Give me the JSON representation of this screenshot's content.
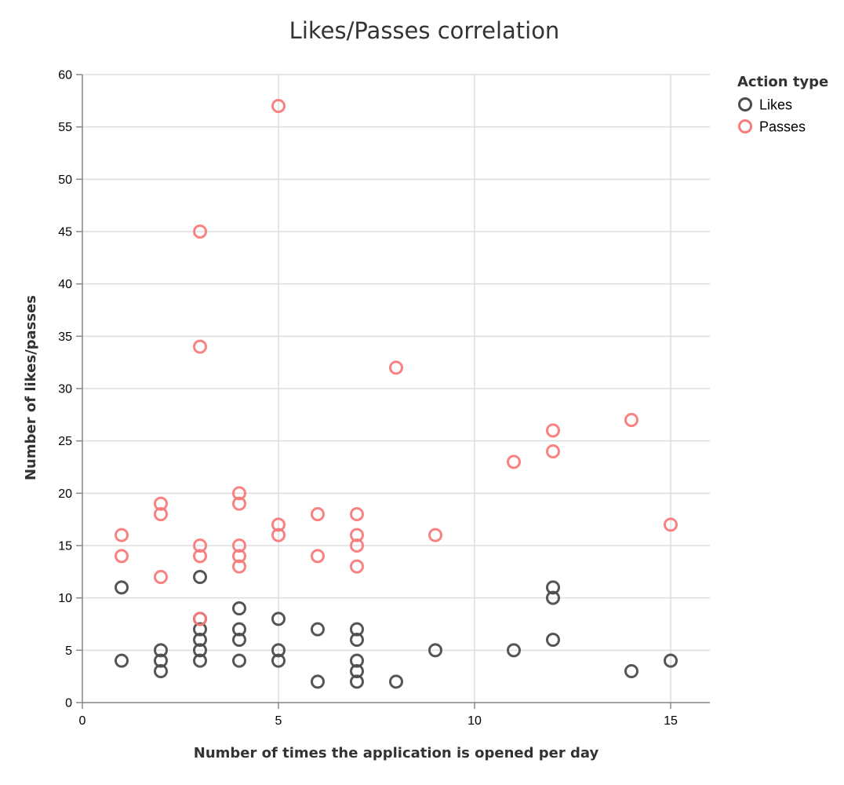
{
  "chart_data": {
    "type": "scatter",
    "title": "Likes/Passes correlation",
    "xlabel": "Number of times the application is opened per day",
    "ylabel": "Number of likes/passes",
    "xlim": [
      0,
      16
    ],
    "ylim": [
      0,
      60
    ],
    "x_ticks": [
      0,
      5,
      10,
      15
    ],
    "y_ticks": [
      0,
      5,
      10,
      15,
      20,
      25,
      30,
      35,
      40,
      45,
      50,
      55,
      60
    ],
    "grid": true,
    "legend": {
      "title": "Action type",
      "placement": "right"
    },
    "series": [
      {
        "name": "Likes",
        "color": "#4c4c4c",
        "points": [
          {
            "x": 1,
            "y": 11
          },
          {
            "x": 1,
            "y": 4
          },
          {
            "x": 2,
            "y": 5
          },
          {
            "x": 2,
            "y": 4
          },
          {
            "x": 2,
            "y": 3
          },
          {
            "x": 3,
            "y": 12
          },
          {
            "x": 3,
            "y": 8
          },
          {
            "x": 3,
            "y": 7
          },
          {
            "x": 3,
            "y": 6
          },
          {
            "x": 3,
            "y": 5
          },
          {
            "x": 3,
            "y": 4
          },
          {
            "x": 4,
            "y": 9
          },
          {
            "x": 4,
            "y": 7
          },
          {
            "x": 4,
            "y": 6
          },
          {
            "x": 4,
            "y": 4
          },
          {
            "x": 5,
            "y": 8
          },
          {
            "x": 5,
            "y": 5
          },
          {
            "x": 5,
            "y": 4
          },
          {
            "x": 6,
            "y": 7
          },
          {
            "x": 6,
            "y": 2
          },
          {
            "x": 7,
            "y": 7
          },
          {
            "x": 7,
            "y": 6
          },
          {
            "x": 7,
            "y": 4
          },
          {
            "x": 7,
            "y": 3
          },
          {
            "x": 7,
            "y": 2
          },
          {
            "x": 8,
            "y": 2
          },
          {
            "x": 9,
            "y": 5
          },
          {
            "x": 11,
            "y": 5
          },
          {
            "x": 12,
            "y": 11
          },
          {
            "x": 12,
            "y": 10
          },
          {
            "x": 12,
            "y": 6
          },
          {
            "x": 14,
            "y": 3
          },
          {
            "x": 15,
            "y": 4
          }
        ]
      },
      {
        "name": "Passes",
        "color": "#f87a7a",
        "points": [
          {
            "x": 1,
            "y": 16
          },
          {
            "x": 1,
            "y": 14
          },
          {
            "x": 2,
            "y": 19
          },
          {
            "x": 2,
            "y": 18
          },
          {
            "x": 2,
            "y": 12
          },
          {
            "x": 3,
            "y": 45
          },
          {
            "x": 3,
            "y": 34
          },
          {
            "x": 3,
            "y": 15
          },
          {
            "x": 3,
            "y": 14
          },
          {
            "x": 3,
            "y": 8
          },
          {
            "x": 4,
            "y": 20
          },
          {
            "x": 4,
            "y": 19
          },
          {
            "x": 4,
            "y": 15
          },
          {
            "x": 4,
            "y": 14
          },
          {
            "x": 4,
            "y": 13
          },
          {
            "x": 5,
            "y": 57
          },
          {
            "x": 5,
            "y": 17
          },
          {
            "x": 5,
            "y": 16
          },
          {
            "x": 6,
            "y": 18
          },
          {
            "x": 6,
            "y": 14
          },
          {
            "x": 7,
            "y": 18
          },
          {
            "x": 7,
            "y": 16
          },
          {
            "x": 7,
            "y": 15
          },
          {
            "x": 7,
            "y": 13
          },
          {
            "x": 8,
            "y": 32
          },
          {
            "x": 9,
            "y": 16
          },
          {
            "x": 11,
            "y": 23
          },
          {
            "x": 12,
            "y": 26
          },
          {
            "x": 12,
            "y": 24
          },
          {
            "x": 14,
            "y": 27
          },
          {
            "x": 15,
            "y": 17
          }
        ]
      }
    ]
  }
}
